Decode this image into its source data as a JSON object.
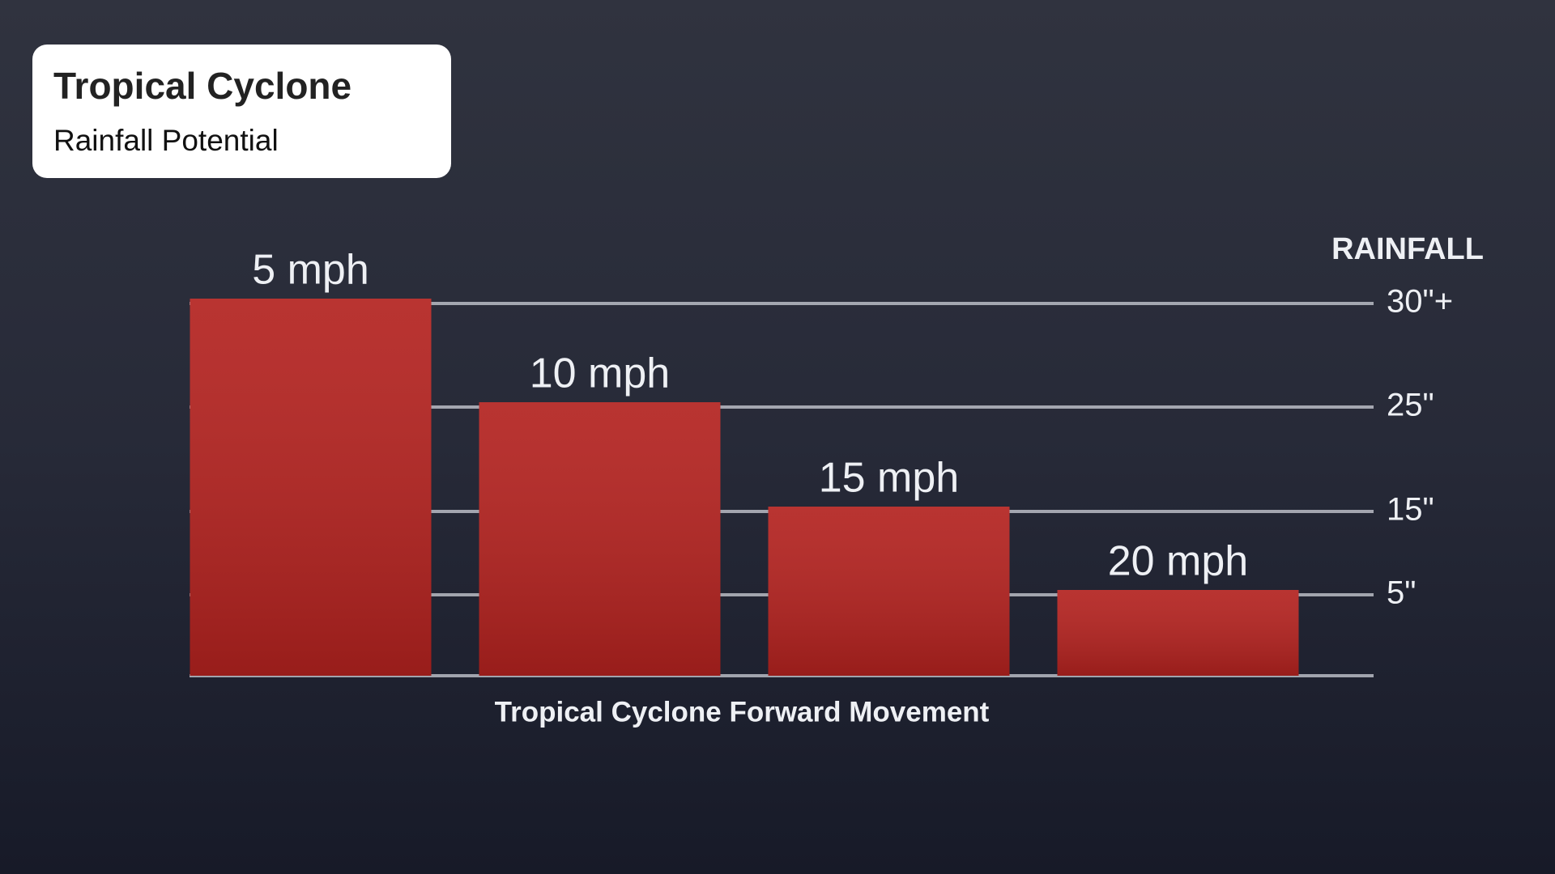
{
  "chart_data": {
    "type": "bar",
    "title": "Tropical Cyclone",
    "subtitle": "Rainfall Potential",
    "y_axis_title": "RAINFALL",
    "x_axis_title": "Tropical Cyclone Forward Movement",
    "categories": [
      "5 mph",
      "10 mph",
      "15 mph",
      "20 mph"
    ],
    "values": [
      30,
      25,
      15,
      5
    ],
    "color": "#b3221f",
    "ylim": [
      0,
      30
    ],
    "yticks": [
      {
        "value": 30,
        "label": "30\"+"
      },
      {
        "value": 25,
        "label": "25\""
      },
      {
        "value": 15,
        "label": "15\""
      },
      {
        "value": 5,
        "label": "5\""
      }
    ],
    "grid": true
  }
}
